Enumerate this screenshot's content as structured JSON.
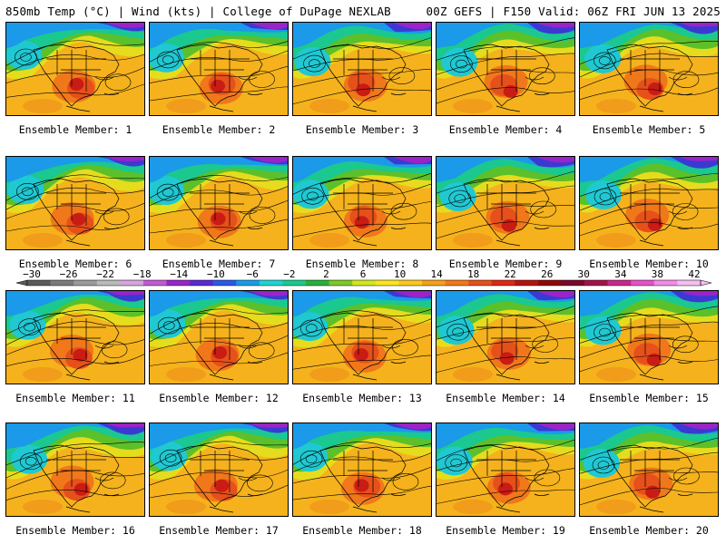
{
  "header": {
    "left": "850mb Temp (°C) | Wind (kts) | College of DuPage NEXLAB",
    "right": "00Z GEFS | F150 Valid: 06Z FRI JUN 13 2025"
  },
  "colorbar": {
    "ticks": [
      "−30",
      "−26",
      "−22",
      "−18",
      "−14",
      "−10",
      "−6",
      "−2",
      "2",
      "6",
      "10",
      "14",
      "18",
      "22",
      "26",
      "30",
      "34",
      "38",
      "42"
    ],
    "colors": [
      "#5a5a5a",
      "#7a7a7a",
      "#9a9a9a",
      "#b9b9b9",
      "#d2a6dc",
      "#c05ad2",
      "#9a24c8",
      "#5a2ad2",
      "#2a5ae8",
      "#1a9ae8",
      "#20d2d2",
      "#1ac890",
      "#28b03a",
      "#7ec828",
      "#d2e61e",
      "#fae61e",
      "#fac81e",
      "#f5a01a",
      "#f0781a",
      "#e6501a",
      "#dc2814",
      "#b41410",
      "#8c0a0a",
      "#780a2a",
      "#a0144a",
      "#c8288c",
      "#e650c8",
      "#f08ce6",
      "#f5bef0"
    ]
  },
  "members": [
    {
      "label": "Ensemble Member: 1"
    },
    {
      "label": "Ensemble Member: 2"
    },
    {
      "label": "Ensemble Member: 3"
    },
    {
      "label": "Ensemble Member: 4"
    },
    {
      "label": "Ensemble Member: 5"
    },
    {
      "label": "Ensemble Member: 6"
    },
    {
      "label": "Ensemble Member: 7"
    },
    {
      "label": "Ensemble Member: 8"
    },
    {
      "label": "Ensemble Member: 9"
    },
    {
      "label": "Ensemble Member: 10"
    },
    {
      "label": "Ensemble Member: 11"
    },
    {
      "label": "Ensemble Member: 12"
    },
    {
      "label": "Ensemble Member: 13"
    },
    {
      "label": "Ensemble Member: 14"
    },
    {
      "label": "Ensemble Member: 15"
    },
    {
      "label": "Ensemble Member: 16"
    },
    {
      "label": "Ensemble Member: 17"
    },
    {
      "label": "Ensemble Member: 18"
    },
    {
      "label": "Ensemble Member: 19"
    },
    {
      "label": "Ensemble Member: 20"
    }
  ]
}
